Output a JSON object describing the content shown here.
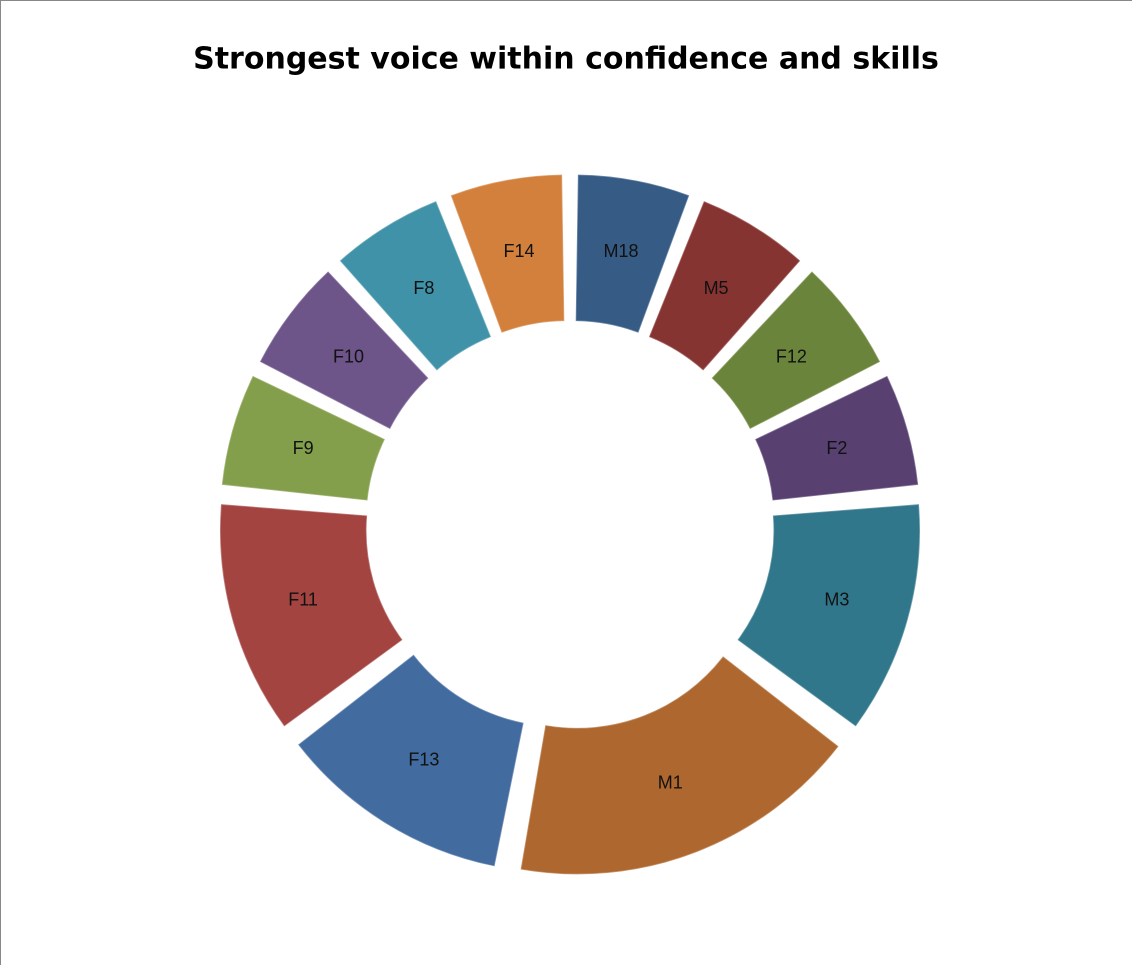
{
  "chart_data": {
    "type": "doughnut",
    "title": "Strongest voice within confidence and skills",
    "categories": [
      "M18",
      "M5",
      "F12",
      "F2",
      "M3",
      "M1",
      "F13",
      "F11",
      "F9",
      "F10",
      "F8",
      "F14"
    ],
    "values": [
      1,
      1,
      1,
      1,
      2,
      3,
      2,
      2,
      1,
      1,
      1,
      1
    ],
    "colors": [
      "#3f6b9c",
      "#9e3d3b",
      "#7e9b45",
      "#674c85",
      "#3a8ca3",
      "#cd7a37",
      "#4e7ebb",
      "#c0504d",
      "#9bbb59",
      "#8064a2",
      "#4bacc6",
      "#f79646"
    ]
  }
}
